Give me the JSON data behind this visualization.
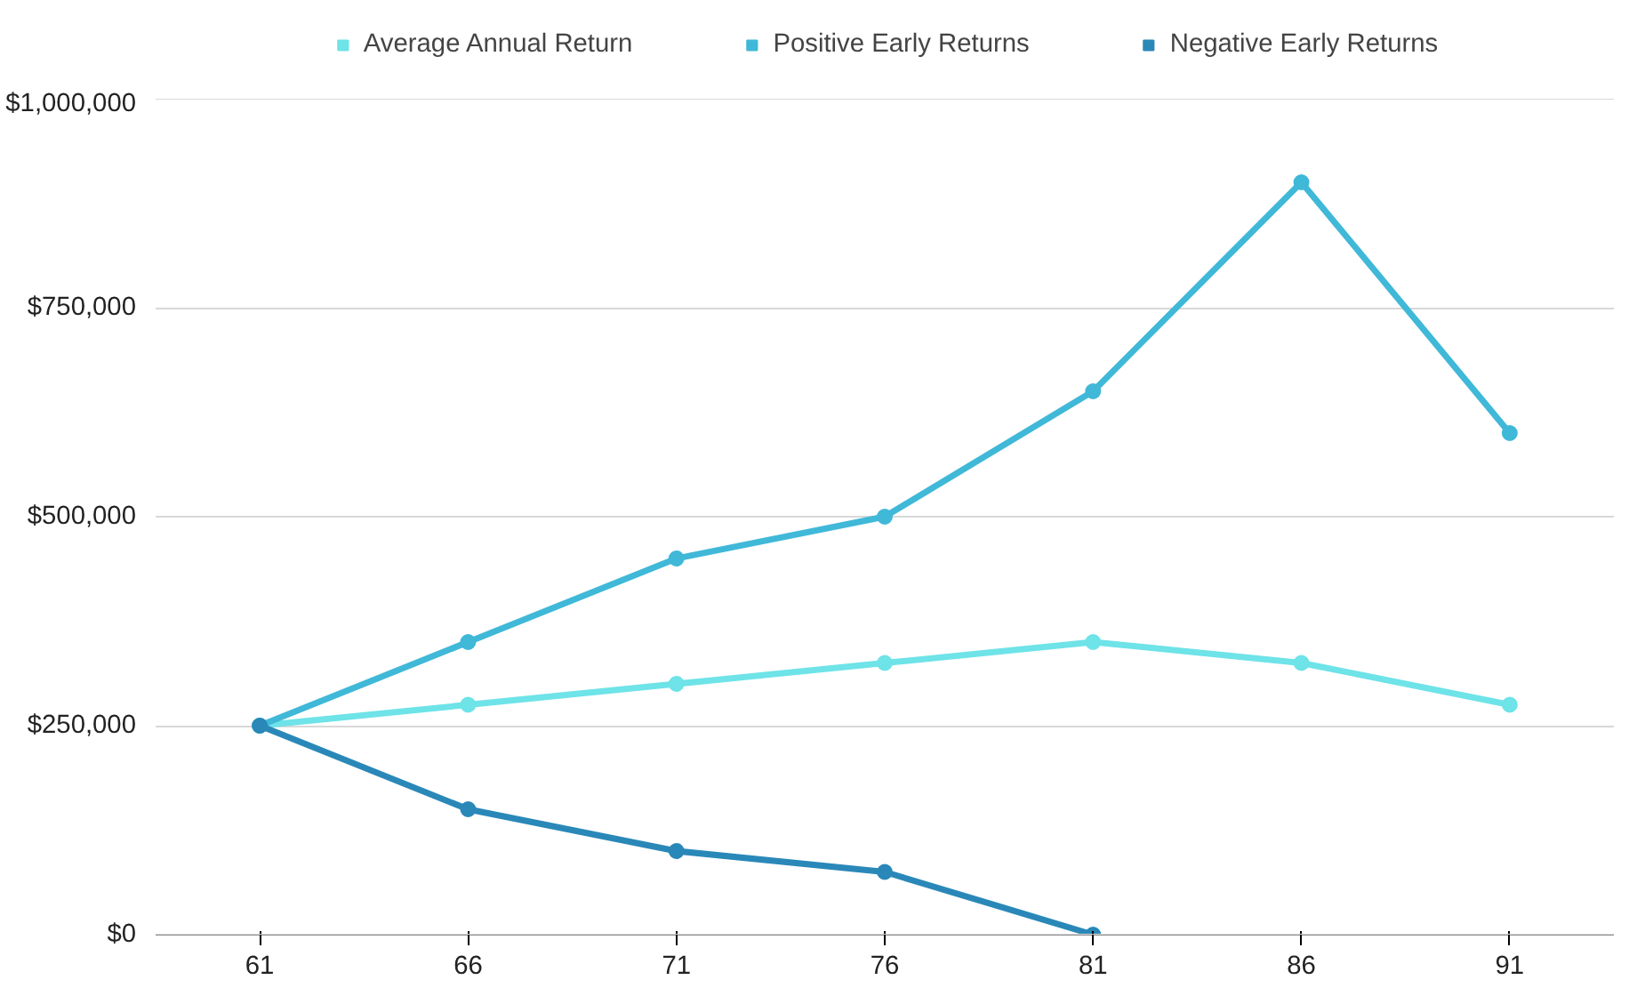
{
  "chart_data": {
    "type": "line",
    "categories": [
      "61",
      "66",
      "71",
      "76",
      "81",
      "86",
      "91"
    ],
    "series": [
      {
        "name": "Average Annual Return",
        "color": "#6ee3e8",
        "values": [
          250000,
          275000,
          300000,
          325000,
          350000,
          325000,
          275000
        ]
      },
      {
        "name": "Positive Early Returns",
        "color": "#40b8d8",
        "values": [
          250000,
          350000,
          450000,
          500000,
          650000,
          900000,
          600000
        ]
      },
      {
        "name": "Negative Early Returns",
        "color": "#2a88b8",
        "values": [
          250000,
          150000,
          100000,
          75000,
          0,
          null,
          null
        ]
      }
    ],
    "ylim": [
      0,
      1000000
    ],
    "yticks": [
      {
        "value": 0,
        "label": "$0"
      },
      {
        "value": 250000,
        "label": "$250,000"
      },
      {
        "value": 500000,
        "label": "$500,000"
      },
      {
        "value": 750000,
        "label": "$750,000"
      },
      {
        "value": 1000000,
        "label": "$1,000,000"
      }
    ],
    "grid": "y",
    "legend": "top",
    "marker": "circle",
    "line_style": "solid"
  }
}
